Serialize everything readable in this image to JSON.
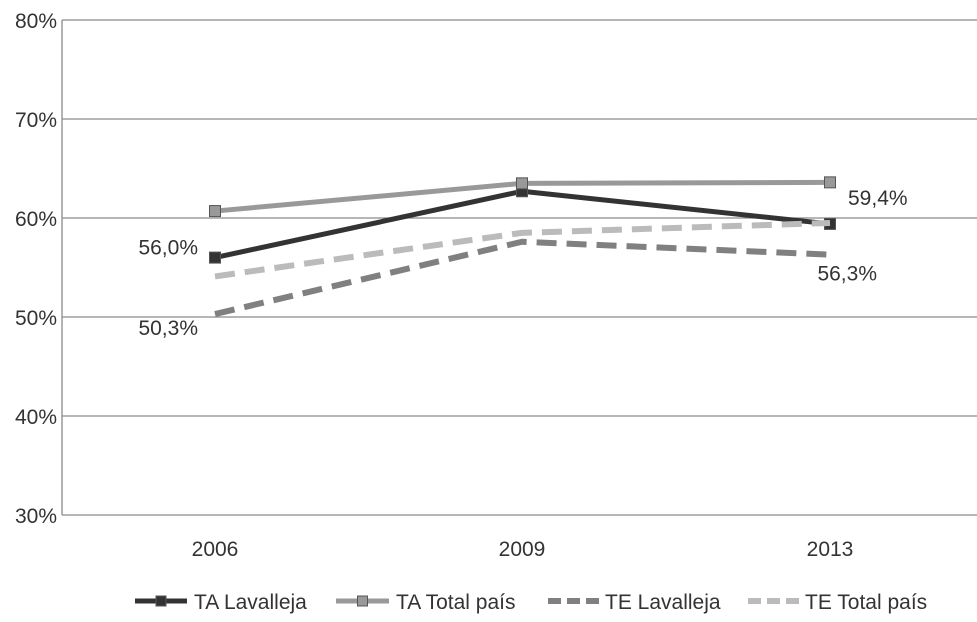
{
  "chart_data": {
    "type": "line",
    "categories": [
      "2006",
      "2009",
      "2013"
    ],
    "ylim": [
      30,
      80
    ],
    "y_ticks": [
      30,
      40,
      50,
      60,
      70,
      80
    ],
    "y_tick_labels": [
      "30%",
      "40%",
      "50%",
      "60%",
      "70%",
      "80%"
    ],
    "grid": true,
    "legend_position": "bottom",
    "series": [
      {
        "name": "TA Lavalleja",
        "values": [
          56.0,
          62.7,
          59.4
        ],
        "color": "#333333",
        "dashed": false,
        "marker": "square"
      },
      {
        "name": "TA Total país",
        "values": [
          60.7,
          63.5,
          63.6
        ],
        "color": "#999999",
        "dashed": false,
        "marker": "square"
      },
      {
        "name": "TE Lavalleja",
        "values": [
          50.3,
          57.6,
          56.3
        ],
        "color": "#808080",
        "dashed": true,
        "marker": "none"
      },
      {
        "name": "TE Total país",
        "values": [
          54.1,
          58.5,
          59.5
        ],
        "color": "#bbbbbb",
        "dashed": true,
        "marker": "none"
      }
    ],
    "annotations": [
      {
        "text": "56,0%",
        "series": 0,
        "point": 0,
        "anchor": "left-above"
      },
      {
        "text": "50,3%",
        "series": 2,
        "point": 0,
        "anchor": "left-below"
      },
      {
        "text": "59,4%",
        "series": 0,
        "point": 2,
        "anchor": "right-above"
      },
      {
        "text": "56,3%",
        "series": 2,
        "point": 2,
        "anchor": "right-below"
      }
    ]
  }
}
